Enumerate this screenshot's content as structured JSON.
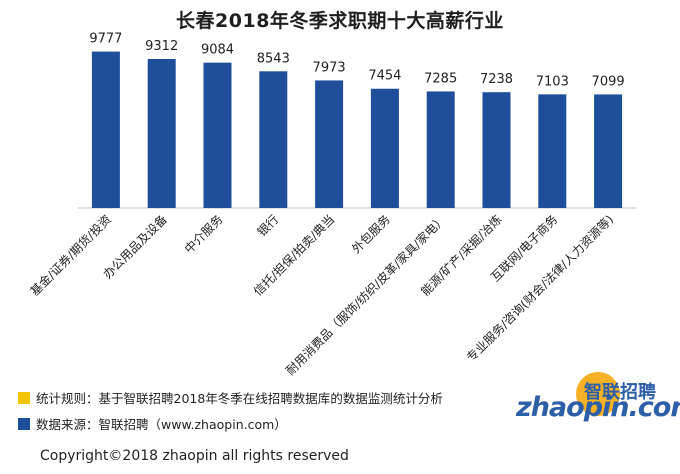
{
  "chart_data": {
    "type": "bar",
    "title": "长春2018年冬季求职期十大高薪行业",
    "categories": [
      "基金/证券/期货/投资",
      "办公用品及设备",
      "中介服务",
      "银行",
      "信托/担保/拍卖/典当",
      "外包服务",
      "耐用消费品（服饰/纺织/皮革/家具/家电）",
      "能源/矿产/采掘/冶炼",
      "互联网/电子商务",
      "专业服务/咨询(财会/法律/人力资源等)"
    ],
    "values": [
      9777,
      9312,
      9084,
      8543,
      7973,
      7454,
      7285,
      7238,
      7103,
      7099
    ],
    "ylim": [
      0,
      10500
    ],
    "grid": false,
    "bar_color": "#1f4e9a"
  },
  "notes": {
    "rule": "统计规则：基于智联招聘2018年冬季在线招聘数据库的数据监测统计分析",
    "source": "数据来源：智联招聘（www.zhaopin.com）",
    "rule_color": "#f2c500",
    "source_color": "#1f4e9a"
  },
  "copyright": "Copyright©2018 zhaopin all rights reserved",
  "logo": {
    "cn": "智联招聘",
    "en": "zhaopin.com"
  }
}
